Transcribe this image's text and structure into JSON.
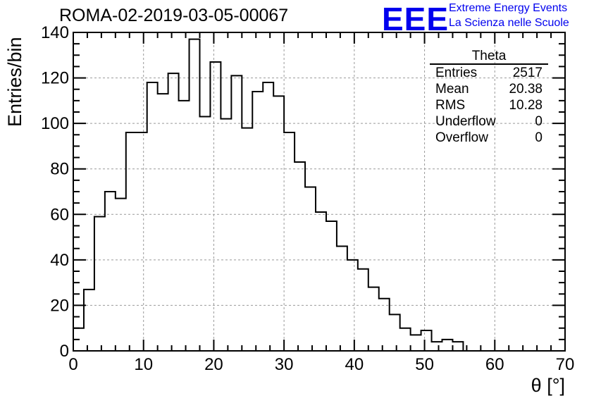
{
  "header": {
    "title": "ROMA-02-2019-03-05-00067",
    "logo_text": "EEE",
    "logo_line1": "Extreme Energy Events",
    "logo_line2": "La Scienza nelle Scuole"
  },
  "stats_box": {
    "title": "Theta",
    "rows": [
      {
        "label": "Entries",
        "value": "2517"
      },
      {
        "label": "Mean",
        "value": "20.38"
      },
      {
        "label": "RMS",
        "value": "10.28"
      },
      {
        "label": "Underflow",
        "value": "0"
      },
      {
        "label": "Overflow",
        "value": "0"
      }
    ]
  },
  "chart_data": {
    "type": "bar",
    "style": "step-histogram",
    "title": "ROMA-02-2019-03-05-00067",
    "xlabel": "θ [°]",
    "ylabel": "Entries/bin",
    "xlim": [
      0,
      70
    ],
    "ylim": [
      0,
      140
    ],
    "bin_width": 1.5,
    "bin_edges_start": 0,
    "values": [
      10,
      27,
      59,
      70,
      67,
      96,
      96,
      118,
      113,
      122,
      110,
      137,
      103,
      127,
      102,
      121,
      98,
      114,
      118,
      112,
      96,
      83,
      72,
      61,
      57,
      46,
      40,
      36,
      28,
      23,
      16,
      10,
      7,
      9,
      4,
      5,
      4
    ],
    "xticks": [
      0,
      10,
      20,
      30,
      40,
      50,
      60,
      70
    ],
    "yticks": [
      0,
      20,
      40,
      60,
      80,
      100,
      120,
      140
    ],
    "grid": true,
    "line_color": "#000000",
    "grid_color": "#999999"
  }
}
